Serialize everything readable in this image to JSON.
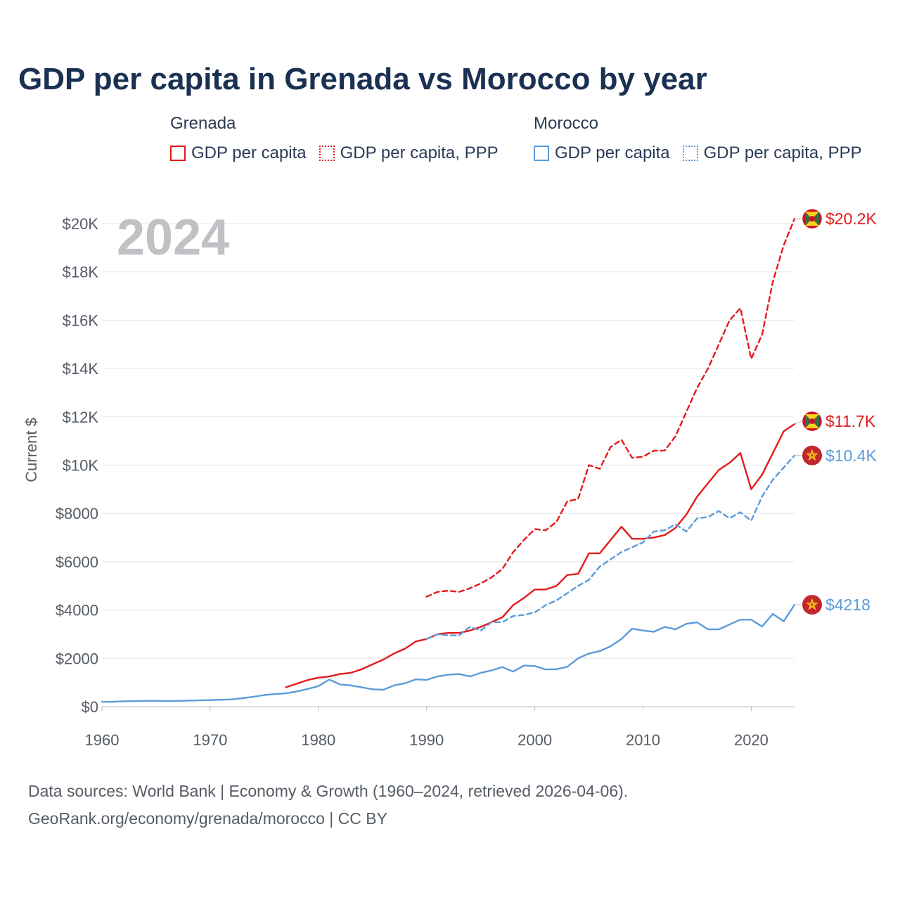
{
  "title": "GDP per capita in Grenada vs Morocco by year",
  "legend": {
    "groups": [
      {
        "name": "Grenada",
        "items": [
          "GDP per capita",
          "GDP per capita, PPP"
        ]
      },
      {
        "name": "Morocco",
        "items": [
          "GDP per capita",
          "GDP per capita, PPP"
        ]
      }
    ]
  },
  "year_watermark": "2024",
  "source": {
    "line1": "Data sources: World Bank | Economy & Growth (1960–2024, retrieved 2026-04-06).",
    "line2": "GeoRank.org/economy/grenada/morocco | CC BY"
  },
  "colors": {
    "grenada": "#e41a1c",
    "morocco": "#5b9bd9"
  },
  "chart_data": {
    "type": "line",
    "title": "GDP per capita in Grenada vs Morocco by year",
    "xlabel": "",
    "ylabel": "Current $",
    "xlim": [
      1960,
      2024
    ],
    "ylim": [
      0,
      20000
    ],
    "x_ticks": [
      1960,
      1970,
      1980,
      1990,
      2000,
      2010,
      2020
    ],
    "y_ticks": [
      0,
      2000,
      4000,
      6000,
      8000,
      10000,
      12000,
      14000,
      16000,
      18000,
      20000
    ],
    "y_tick_labels": [
      "$0",
      "$2000",
      "$4000",
      "$6000",
      "$8000",
      "$10K",
      "$12K",
      "$14K",
      "$16K",
      "$18K",
      "$20K"
    ],
    "grid": true,
    "series": [
      {
        "name": "Grenada GDP per capita",
        "country": "Grenada",
        "style": "solid",
        "color": "#e41a1c",
        "end_label": "$11.7K",
        "x": [
          1977,
          1978,
          1979,
          1980,
          1981,
          1982,
          1983,
          1984,
          1985,
          1986,
          1987,
          1988,
          1989,
          1990,
          1991,
          1992,
          1993,
          1994,
          1995,
          1996,
          1997,
          1998,
          1999,
          2000,
          2001,
          2002,
          2003,
          2004,
          2005,
          2006,
          2007,
          2008,
          2009,
          2010,
          2011,
          2012,
          2013,
          2014,
          2015,
          2016,
          2017,
          2018,
          2019,
          2020,
          2021,
          2022,
          2023,
          2024
        ],
        "values": [
          800,
          950,
          1100,
          1200,
          1250,
          1350,
          1400,
          1550,
          1750,
          1950,
          2200,
          2400,
          2700,
          2800,
          3000,
          3050,
          3050,
          3150,
          3300,
          3500,
          3700,
          4200,
          4500,
          4850,
          4850,
          5000,
          5450,
          5500,
          6350,
          6350,
          6900,
          7450,
          6950,
          6950,
          7000,
          7100,
          7400,
          7950,
          8700,
          9250,
          9800,
          10100,
          10500,
          9000,
          9600,
          10500,
          11400,
          11700
        ]
      },
      {
        "name": "Grenada GDP per capita, PPP",
        "country": "Grenada",
        "style": "dashed",
        "color": "#e41a1c",
        "end_label": "$20.2K",
        "x": [
          1990,
          1991,
          1992,
          1993,
          1994,
          1995,
          1996,
          1997,
          1998,
          1999,
          2000,
          2001,
          2002,
          2003,
          2004,
          2005,
          2006,
          2007,
          2008,
          2009,
          2010,
          2011,
          2012,
          2013,
          2014,
          2015,
          2016,
          2017,
          2018,
          2019,
          2020,
          2021,
          2022,
          2023,
          2024
        ],
        "values": [
          4550,
          4750,
          4800,
          4750,
          4900,
          5100,
          5350,
          5700,
          6400,
          6900,
          7350,
          7300,
          7650,
          8500,
          8600,
          10000,
          9850,
          10750,
          11050,
          10300,
          10350,
          10600,
          10600,
          11200,
          12200,
          13200,
          14000,
          15000,
          16000,
          16500,
          14400,
          15400,
          17600,
          19100,
          20200
        ]
      },
      {
        "name": "Morocco GDP per capita",
        "country": "Morocco",
        "style": "solid",
        "color": "#5b9bd9",
        "end_label": "$4218",
        "x": [
          1960,
          1961,
          1962,
          1963,
          1964,
          1965,
          1966,
          1967,
          1968,
          1969,
          1970,
          1971,
          1972,
          1973,
          1974,
          1975,
          1976,
          1977,
          1978,
          1979,
          1980,
          1981,
          1982,
          1983,
          1984,
          1985,
          1986,
          1987,
          1988,
          1989,
          1990,
          1991,
          1992,
          1993,
          1994,
          1995,
          1996,
          1997,
          1998,
          1999,
          2000,
          2001,
          2002,
          2003,
          2004,
          2005,
          2006,
          2007,
          2008,
          2009,
          2010,
          2011,
          2012,
          2013,
          2014,
          2015,
          2016,
          2017,
          2018,
          2019,
          2020,
          2021,
          2022,
          2023,
          2024
        ],
        "values": [
          200,
          200,
          220,
          230,
          240,
          240,
          230,
          240,
          250,
          260,
          270,
          285,
          300,
          350,
          410,
          480,
          520,
          550,
          630,
          730,
          850,
          1120,
          920,
          880,
          800,
          720,
          700,
          880,
          970,
          1130,
          1110,
          1250,
          1320,
          1350,
          1250,
          1400,
          1500,
          1640,
          1450,
          1700,
          1680,
          1540,
          1550,
          1650,
          2000,
          2200,
          2300,
          2500,
          2800,
          3230,
          3150,
          3100,
          3300,
          3200,
          3430,
          3490,
          3200,
          3200,
          3400,
          3600,
          3600,
          3320,
          3840,
          3530,
          4218
        ]
      },
      {
        "name": "Morocco GDP per capita, PPP",
        "country": "Morocco",
        "style": "dashed",
        "color": "#5b9bd9",
        "end_label": "$10.4K",
        "x": [
          1990,
          1991,
          1992,
          1993,
          1994,
          1995,
          1996,
          1997,
          1998,
          1999,
          2000,
          2001,
          2002,
          2003,
          2004,
          2005,
          2006,
          2007,
          2008,
          2009,
          2010,
          2011,
          2012,
          2013,
          2014,
          2015,
          2016,
          2017,
          2018,
          2019,
          2020,
          2021,
          2022,
          2023,
          2024
        ],
        "values": [
          2800,
          3000,
          2950,
          2950,
          3300,
          3150,
          3500,
          3500,
          3750,
          3800,
          3900,
          4200,
          4400,
          4700,
          5000,
          5250,
          5800,
          6100,
          6400,
          6600,
          6800,
          7250,
          7300,
          7550,
          7250,
          7800,
          7850,
          8100,
          7800,
          8050,
          7700,
          8700,
          9400,
          9900,
          10400
        ]
      }
    ]
  }
}
